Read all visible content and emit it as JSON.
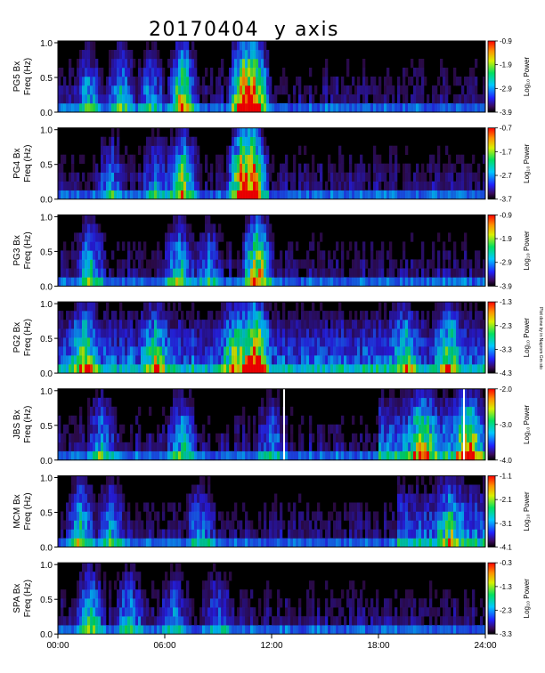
{
  "chart_data": {
    "type": "heatmap",
    "title": "20170404  y axis",
    "xlabel": "",
    "x_ticks": [
      "00:00",
      "06:00",
      "12:00",
      "18:00",
      "24:00"
    ],
    "xlim": [
      0,
      24
    ],
    "colorbar_label": "Log₁₀ Power",
    "side_note": "Plot done by in Naprom Gm sto",
    "panels": [
      {
        "station": "PG5 Bx",
        "ylabel": "PG5 Bx",
        "ylabel2": "Freq (Hz)",
        "ylim": [
          0,
          1.0
        ],
        "y_ticks": [
          "0.0",
          "0.5",
          "1.0"
        ],
        "cb_ticks": [
          "-0.9",
          "-1.9",
          "-2.9",
          "-3.9"
        ],
        "cb_range": [
          -3.9,
          -0.9
        ]
      },
      {
        "station": "PG4 Bx",
        "ylabel": "PG4 Bx",
        "ylabel2": "Freq (Hz)",
        "ylim": [
          0,
          1.0
        ],
        "y_ticks": [
          "0.0",
          "0.5",
          "1.0"
        ],
        "cb_ticks": [
          "-0.7",
          "-1.7",
          "-2.7",
          "-3.7"
        ],
        "cb_range": [
          -3.7,
          -0.7
        ]
      },
      {
        "station": "PG3 Bx",
        "ylabel": "PG3 Bx",
        "ylabel2": "Freq (Hz)",
        "ylim": [
          0,
          1.0
        ],
        "y_ticks": [
          "0.0",
          "0.5",
          "1.0"
        ],
        "cb_ticks": [
          "-0.9",
          "-1.9",
          "-2.9",
          "-3.9"
        ],
        "cb_range": [
          -3.9,
          -0.9
        ]
      },
      {
        "station": "PG2 Bx",
        "ylabel": "PG2 Bx",
        "ylabel2": "Freq (Hz)",
        "ylim": [
          0,
          1.0
        ],
        "y_ticks": [
          "0.0",
          "0.5",
          "1.0"
        ],
        "cb_ticks": [
          "-1.3",
          "-2.3",
          "-3.3",
          "-4.3"
        ],
        "cb_range": [
          -4.3,
          -1.3
        ]
      },
      {
        "station": "JBS Bx",
        "ylabel": "JBS Bx",
        "ylabel2": "Freq (Hz)",
        "ylim": [
          0,
          1.0
        ],
        "y_ticks": [
          "0.0",
          "0.5",
          "1.0"
        ],
        "cb_ticks": [
          "-2.0",
          "-3.0",
          "-4.0"
        ],
        "cb_range": [
          -4.0,
          -2.0
        ]
      },
      {
        "station": "MCM Bx",
        "ylabel": "MCM Bx",
        "ylabel2": "Freq (Hz)",
        "ylim": [
          0,
          1.0
        ],
        "y_ticks": [
          "0.0",
          "0.5",
          "1.0"
        ],
        "cb_ticks": [
          "-1.1",
          "-2.1",
          "-3.1",
          "-4.1"
        ],
        "cb_range": [
          -4.1,
          -1.1
        ]
      },
      {
        "station": "SPA Bx",
        "ylabel": "SPA Bx",
        "ylabel2": "Freq (Hz)",
        "ylim": [
          0,
          1.0
        ],
        "y_ticks": [
          "0.0",
          "0.5",
          "1.0"
        ],
        "cb_ticks": [
          "-0.3",
          "-1.3",
          "-2.3",
          "-3.3"
        ],
        "cb_range": [
          -3.3,
          -0.3
        ]
      }
    ]
  }
}
